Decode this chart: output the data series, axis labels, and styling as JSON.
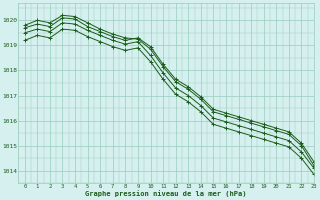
{
  "title": "Graphe pression niveau de la mer (hPa)",
  "bg_color": "#d6f0f0",
  "grid_color": "#99ccbb",
  "line_color": "#1a5c1a",
  "xlim": [
    -0.5,
    23
  ],
  "ylim": [
    1013.5,
    1020.7
  ],
  "yticks": [
    1014,
    1015,
    1016,
    1017,
    1018,
    1019,
    1020
  ],
  "xticks": [
    0,
    1,
    2,
    3,
    4,
    5,
    6,
    7,
    8,
    9,
    10,
    11,
    12,
    13,
    14,
    15,
    16,
    17,
    18,
    19,
    20,
    21,
    22,
    23
  ],
  "series": [
    [
      1019.8,
      1020.0,
      1019.9,
      1020.2,
      1020.15,
      1019.9,
      1019.65,
      1019.45,
      1019.3,
      1019.25,
      1018.85,
      1018.15,
      1017.55,
      1017.25,
      1016.85,
      1016.35,
      1016.2,
      1016.05,
      1015.9,
      1015.75,
      1015.6,
      1015.45,
      1015.0,
      1014.2
    ],
    [
      1019.7,
      1019.85,
      1019.75,
      1020.1,
      1020.05,
      1019.75,
      1019.55,
      1019.35,
      1019.2,
      1019.3,
      1018.95,
      1018.25,
      1017.65,
      1017.35,
      1016.95,
      1016.45,
      1016.3,
      1016.15,
      1016.0,
      1015.85,
      1015.7,
      1015.55,
      1015.1,
      1014.35
    ],
    [
      1019.5,
      1019.65,
      1019.55,
      1019.9,
      1019.85,
      1019.6,
      1019.4,
      1019.2,
      1019.05,
      1019.15,
      1018.6,
      1017.9,
      1017.3,
      1017.0,
      1016.6,
      1016.1,
      1015.95,
      1015.8,
      1015.65,
      1015.5,
      1015.35,
      1015.2,
      1014.75,
      1014.1
    ],
    [
      1019.2,
      1019.4,
      1019.3,
      1019.65,
      1019.6,
      1019.35,
      1019.15,
      1018.95,
      1018.8,
      1018.9,
      1018.35,
      1017.65,
      1017.05,
      1016.75,
      1016.35,
      1015.85,
      1015.7,
      1015.55,
      1015.4,
      1015.25,
      1015.1,
      1014.95,
      1014.5,
      1013.85
    ]
  ]
}
